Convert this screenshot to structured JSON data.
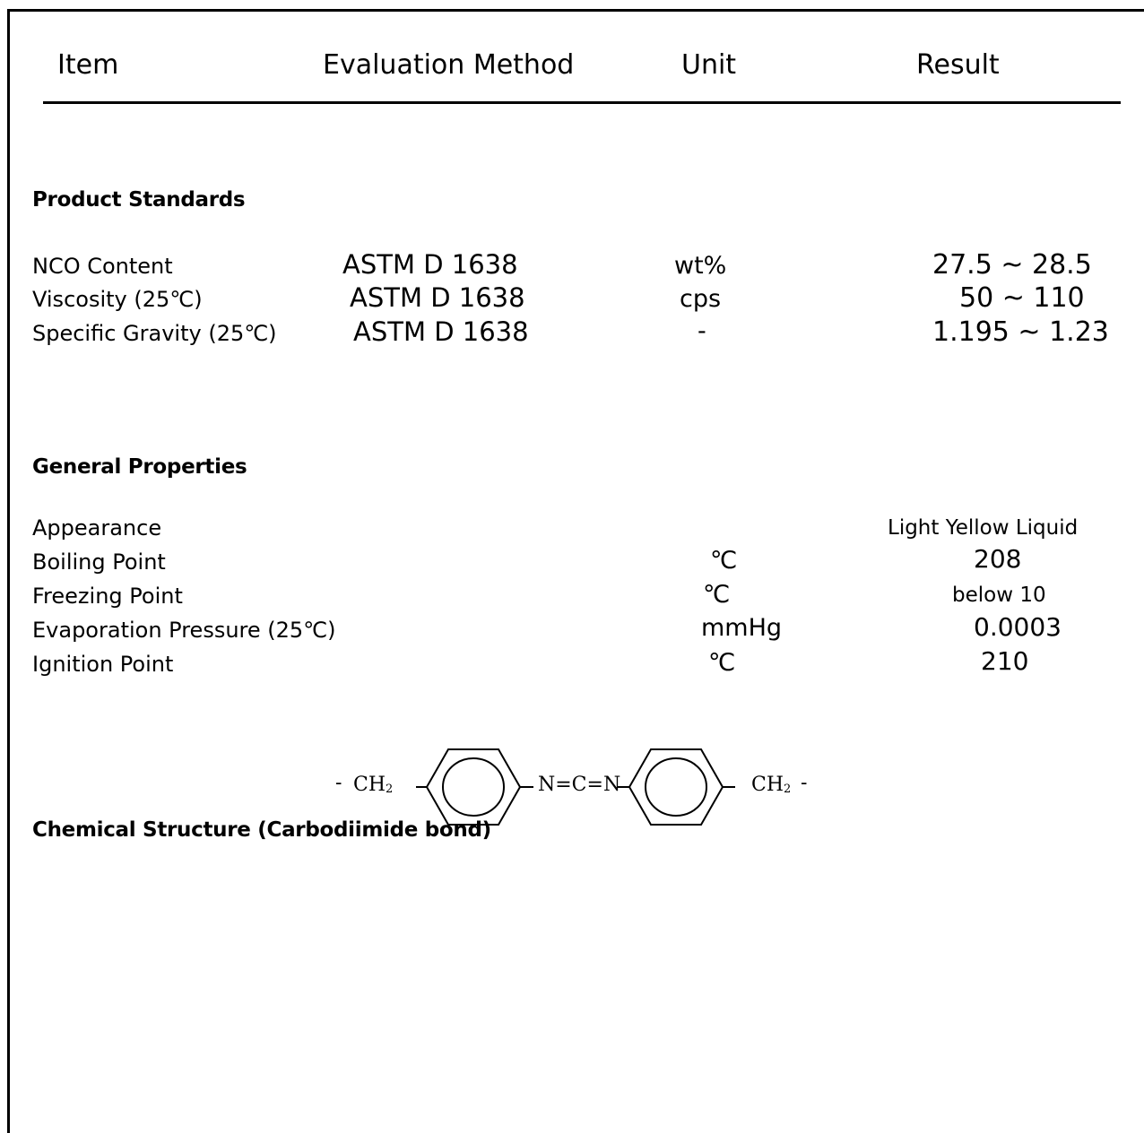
{
  "header": {
    "item": "Item",
    "method": "Evaluation Method",
    "unit": "Unit",
    "result": "Result"
  },
  "product_standards": {
    "title": "Product Standards",
    "rows": [
      {
        "item": "NCO Content",
        "method": "ASTM D 1638",
        "unit": "wt%",
        "result": "27.5 ~ 28.5"
      },
      {
        "item": "Viscosity (25℃)",
        "method": "ASTM D 1638",
        "unit": "cps",
        "result": "50 ~ 110"
      },
      {
        "item": "Specific Gravity (25℃)",
        "method": "ASTM D 1638",
        "unit": "-",
        "result": "1.195 ~ 1.23"
      }
    ]
  },
  "general_properties": {
    "title": "General Properties",
    "rows": [
      {
        "item": "Appearance",
        "unit": "",
        "result": "Light Yellow Liquid"
      },
      {
        "item": "Boiling Point",
        "unit": "℃",
        "result": "208"
      },
      {
        "item": "Freezing Point",
        "unit": "℃",
        "result": "below 10"
      },
      {
        "item": "Evaporation Pressure (25℃)",
        "unit": "mmHg",
        "result": "0.0003"
      },
      {
        "item": "Ignition Point",
        "unit": "℃",
        "result": "210"
      }
    ]
  },
  "chemical_structure": {
    "title": "Chemical Structure (Carbodiimide bond)",
    "left_group": "CH",
    "left_sub": "2",
    "middle_group": "N=C=N",
    "right_group": "CH",
    "right_sub": "2",
    "dash": "-"
  }
}
